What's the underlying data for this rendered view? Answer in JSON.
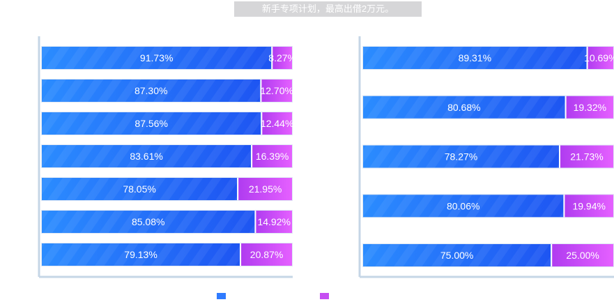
{
  "header": {
    "banner_text": "新手专项计划，最高出借2万元。"
  },
  "colors": {
    "blue_dark": "#1e5ff5",
    "blue_light": "#2e8cff",
    "purple_dark": "#b63ff0",
    "purple_light": "#e25cff",
    "track": "#dfe8f4",
    "axis_line": "#c5d6e6"
  },
  "legend": [
    {
      "color": "#2f7bff"
    },
    {
      "color": "#c64ef2"
    }
  ],
  "chart_data": [
    {
      "type": "bar",
      "orientation": "horizontal",
      "stacked": true,
      "series": [
        {
          "values": [
            91.73,
            87.3,
            87.56,
            83.61,
            78.05,
            85.08,
            79.13
          ],
          "labels": [
            "91.73%",
            "87.30%",
            "87.56%",
            "83.61%",
            "78.05%",
            "85.08%",
            "79.13%"
          ]
        },
        {
          "values": [
            8.27,
            12.7,
            12.44,
            16.39,
            21.95,
            14.92,
            20.87
          ],
          "labels": [
            "8.27%",
            "12.70%",
            "12.44%",
            "16.39%",
            "21.95%",
            "14.92%",
            "20.87%"
          ]
        }
      ],
      "xlim": [
        0,
        100
      ]
    },
    {
      "type": "bar",
      "orientation": "horizontal",
      "stacked": true,
      "series": [
        {
          "values": [
            89.31,
            80.68,
            78.27,
            80.06,
            75.0
          ],
          "labels": [
            "89.31%",
            "80.68%",
            "78.27%",
            "80.06%",
            "75.00%"
          ]
        },
        {
          "values": [
            10.69,
            19.32,
            21.73,
            19.94,
            25.0
          ],
          "labels": [
            "10.69%",
            "19.32%",
            "21.73%",
            "19.94%",
            "25.00%"
          ]
        }
      ],
      "xlim": [
        0,
        100
      ]
    }
  ]
}
